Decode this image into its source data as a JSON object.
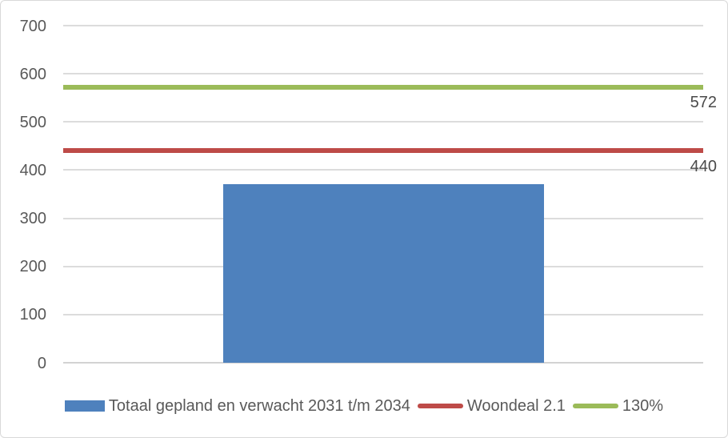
{
  "chart_data": {
    "type": "bar",
    "title": "",
    "categories": [
      "Totaal gepland en verwacht 2031 t/m 2034"
    ],
    "series": [
      {
        "name": "Totaal gepland en verwacht 2031 t/m 2034",
        "type": "bar",
        "values": [
          371
        ],
        "color": "#4E81BD"
      },
      {
        "name": "Woondeal 2.1",
        "type": "line",
        "values": [
          440
        ],
        "color": "#BE4B48"
      },
      {
        "name": "130%",
        "type": "line",
        "values": [
          572
        ],
        "color": "#9BBB59"
      }
    ],
    "ylim": [
      0,
      700
    ],
    "yticks": [
      0,
      100,
      200,
      300,
      400,
      500,
      600,
      700
    ],
    "xlabel": "",
    "ylabel": "",
    "grid": true,
    "legend_position": "bottom",
    "annotations": [
      {
        "text": "572",
        "value": 572,
        "series": "130%"
      },
      {
        "text": "440",
        "value": 440,
        "series": "Woondeal 2.1"
      }
    ]
  },
  "styles": {
    "background": "#FFFFFF",
    "border_color": "#D9D9D9",
    "gridline_color": "#DCDCDC",
    "axis_line_color": "#D3D3D3",
    "tick_text_color": "#595959",
    "bar_color": "#4E81BD",
    "woondeal_line_color": "#BE4B48",
    "pct130_line_color": "#9BBB59"
  },
  "legend": {
    "items": [
      {
        "label": "Totaal gepland en verwacht 2031 t/m 2034",
        "swatch": "bar",
        "color": "#4E81BD"
      },
      {
        "label": "Woondeal 2.1",
        "swatch": "line",
        "color": "#BE4B48"
      },
      {
        "label": "130%",
        "swatch": "line",
        "color": "#9BBB59"
      }
    ]
  }
}
